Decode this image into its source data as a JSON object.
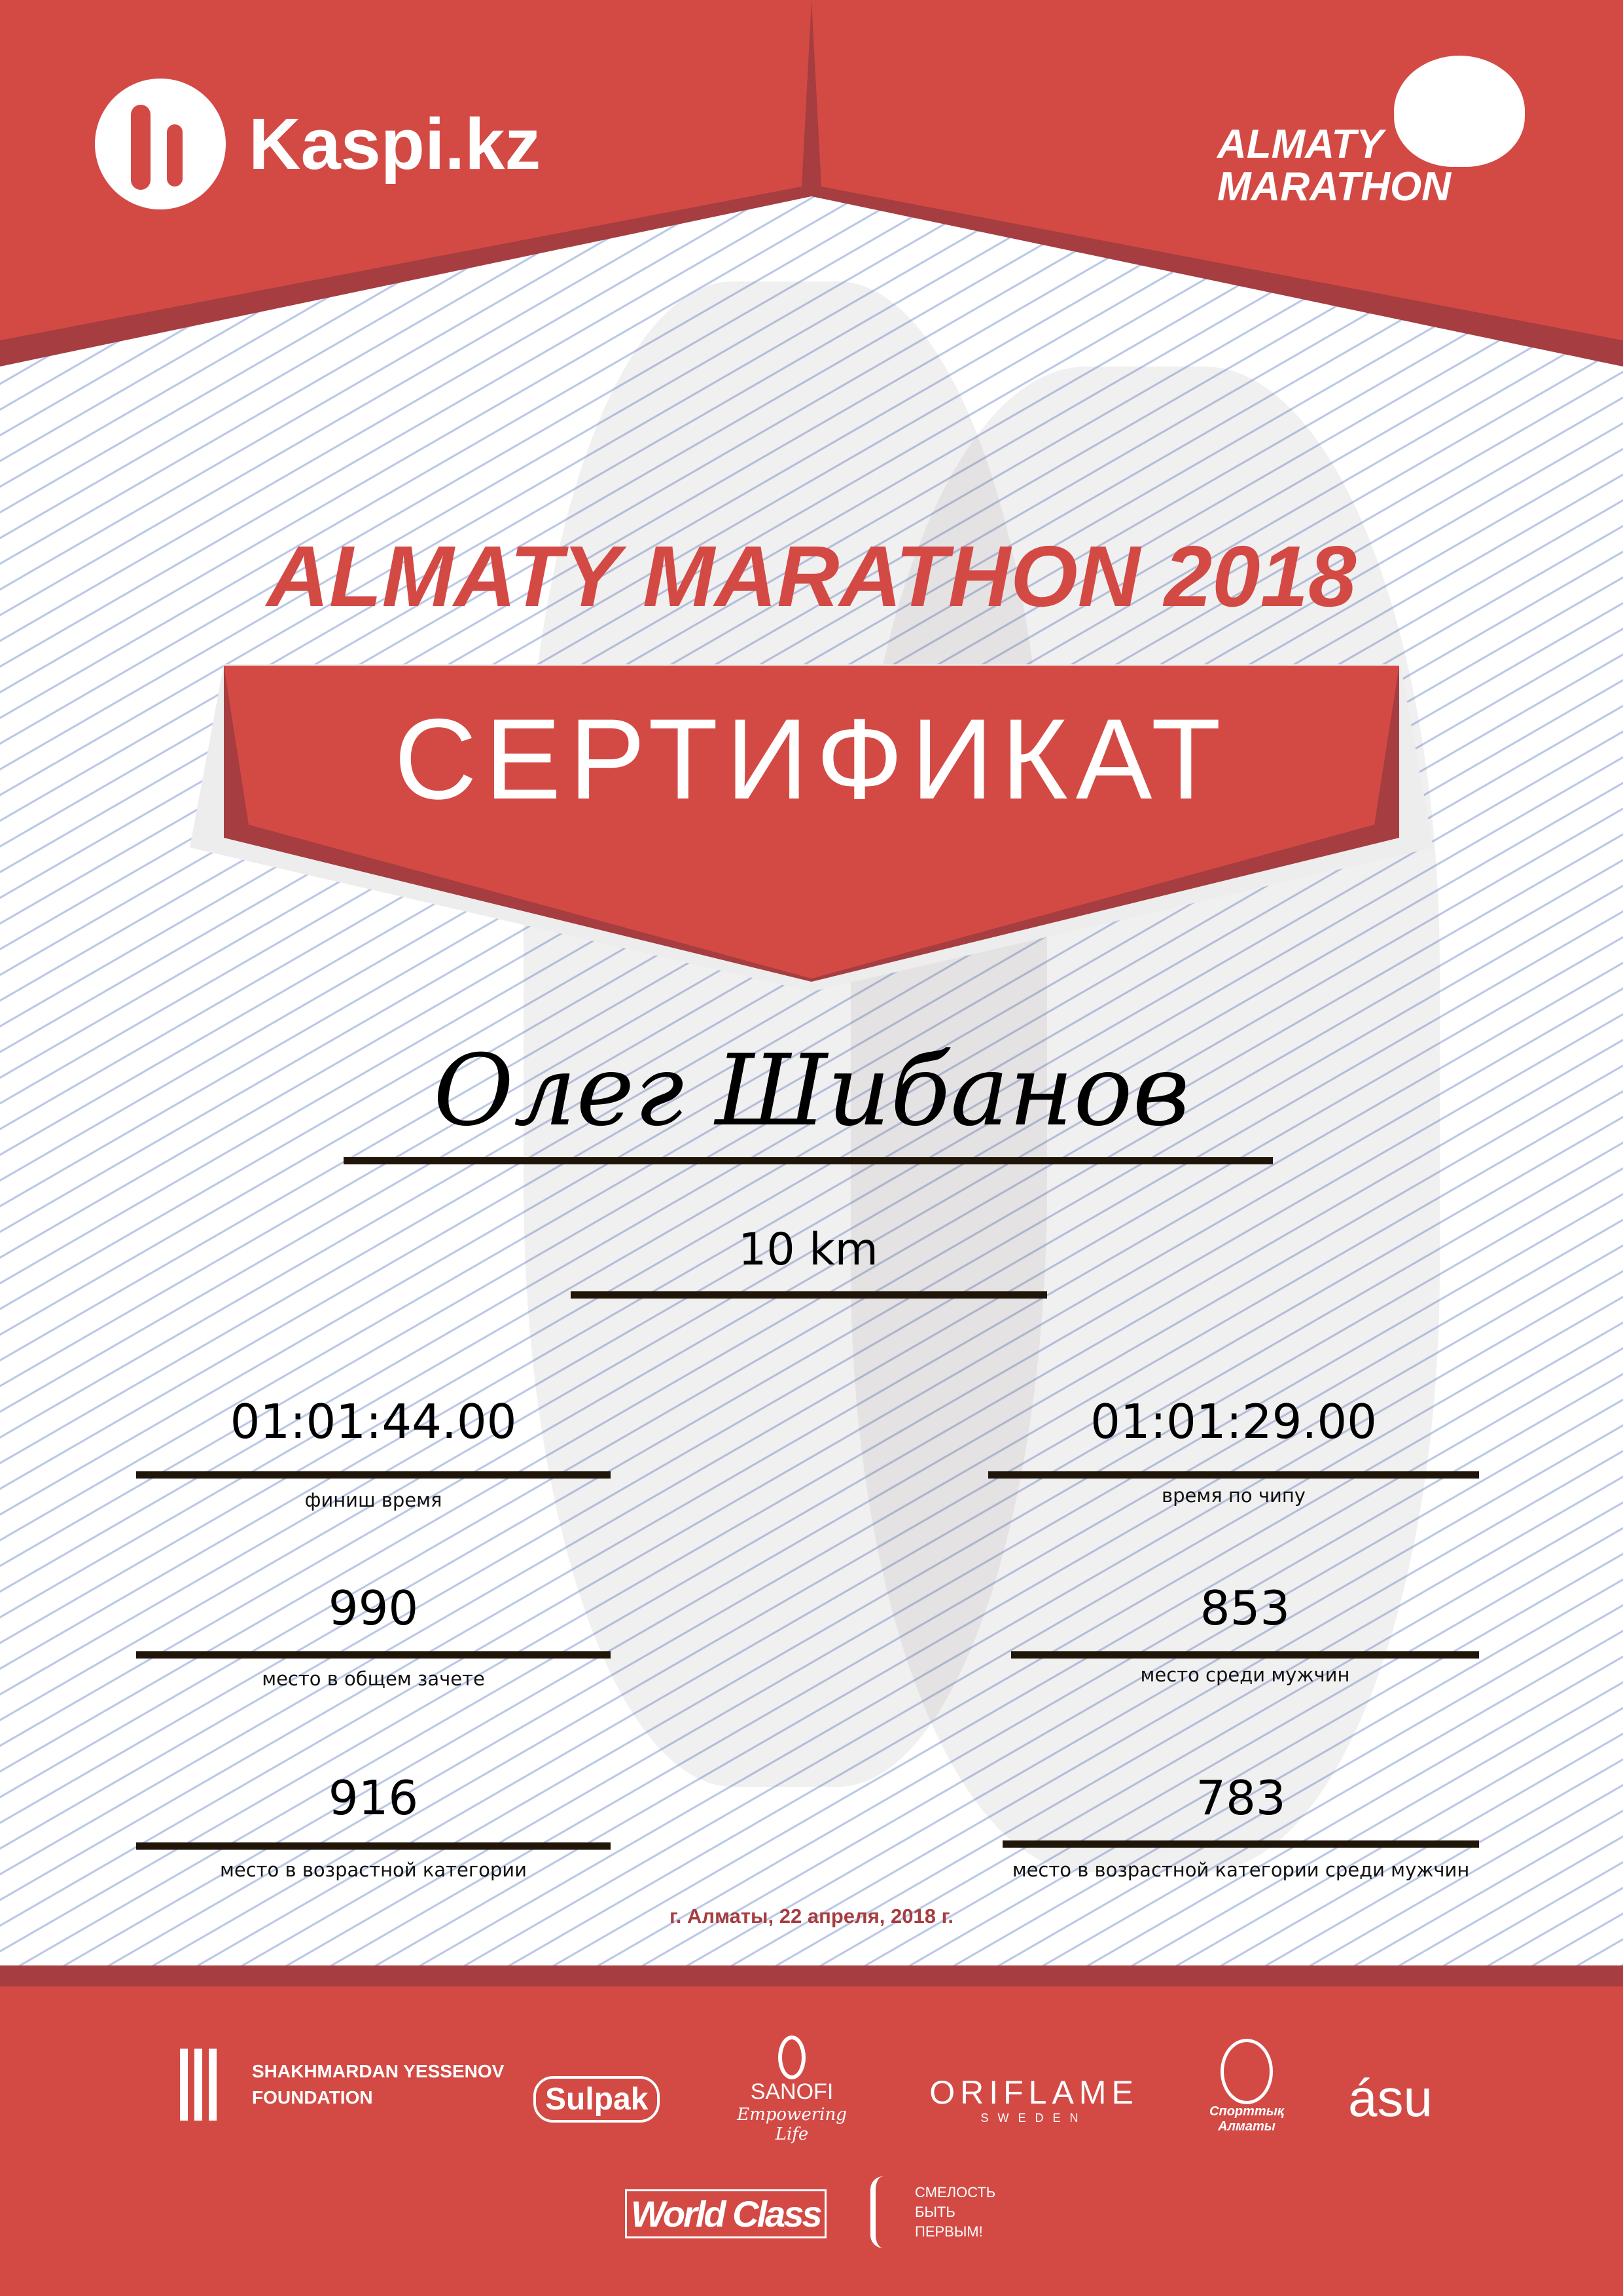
{
  "colors": {
    "brand_red": "#d34a45",
    "dark_red": "#a63d40",
    "date_red": "#a63d40",
    "rule": "#1f1509"
  },
  "header": {
    "left_logo": "Kaspi.kz",
    "right_logo_line1": "ALMATY",
    "right_logo_line2": "MARATHON"
  },
  "title": "ALMATY MARATHON 2018",
  "banner": "СЕРТИФИКАТ",
  "participant": {
    "name": "Олег Шибанов",
    "distance": "10 km"
  },
  "results": [
    {
      "value": "01:01:44.00",
      "label": "финиш время"
    },
    {
      "value": "01:01:29.00",
      "label": "время по чипу"
    },
    {
      "value": "990",
      "label": "место в общем зачете"
    },
    {
      "value": "853",
      "label": "место среди мужчин"
    },
    {
      "value": "916",
      "label": "место в возрастной категории"
    },
    {
      "value": "783",
      "label": "место в возрастной категории среди мужчин"
    }
  ],
  "date": "г. Алматы, 22 апреля, 2018 г.",
  "sponsors": {
    "yessenov_1": "SHAKHMARDAN YESSENOV",
    "yessenov_2": "FOUNDATION",
    "sulpak": "Sulpak",
    "sanofi": "SANOFI",
    "sanofi_tag": "Empowering Life",
    "oriflame": "ORIFLAME",
    "oriflame_sub": "SWEDEN",
    "sport": "Спорттық Алматы",
    "asu": "ásu",
    "worldclass": "World Class",
    "fund_1": "СМЕЛОСТЬ",
    "fund_2": "БЫТЬ",
    "fund_3": "ПЕРВЫМ!"
  }
}
